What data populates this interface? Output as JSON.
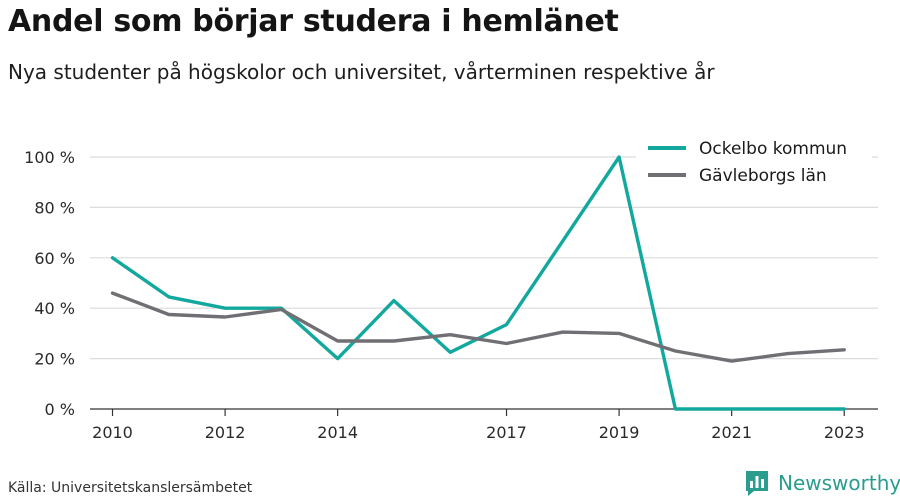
{
  "header": {
    "title": "Andel som börjar studera i hemlänet",
    "subtitle": "Nya studenter på högskolor och universitet, vårterminen respektive år"
  },
  "footer": {
    "source": "Källa: Universitetskanslersämbetet",
    "brand": "Newsworthy"
  },
  "colors": {
    "ockelbo": "#13a89e",
    "gavleborg": "#706f74",
    "grid": "#dcdcdc",
    "axis": "#333333",
    "brand": "#2a9d8f"
  },
  "chart_data": {
    "type": "line",
    "xlim": [
      2009.6,
      2023.6
    ],
    "ylim": [
      0,
      100
    ],
    "x_ticks": [
      2010,
      2012,
      2014,
      2017,
      2019,
      2021,
      2023
    ],
    "x_tick_labels": [
      "2010",
      "2012",
      "2014",
      "2017",
      "2019",
      "2021",
      "2023"
    ],
    "y_ticks": [
      0,
      20,
      40,
      60,
      80,
      100
    ],
    "y_tick_labels": [
      "0 %",
      "20 %",
      "40 %",
      "60 %",
      "80 %",
      "100 %"
    ],
    "grid": true,
    "legend_position": "top-right",
    "series": [
      {
        "name": "Ockelbo kommun",
        "color": "#13a89e",
        "points": [
          [
            2010,
            60
          ],
          [
            2011,
            44.5
          ],
          [
            2012,
            40
          ],
          [
            2013,
            40
          ],
          [
            2014,
            20
          ],
          [
            2015,
            43
          ],
          [
            2016,
            22.5
          ],
          [
            2017,
            33.5
          ],
          [
            2018,
            66.7
          ],
          [
            2019,
            100
          ],
          [
            2020,
            0
          ],
          [
            2021,
            0
          ],
          [
            2022,
            0
          ],
          [
            2023,
            0
          ]
        ]
      },
      {
        "name": "Gävleborgs län",
        "color": "#706f74",
        "points": [
          [
            2010,
            46
          ],
          [
            2011,
            37.5
          ],
          [
            2012,
            36.5
          ],
          [
            2013,
            39.5
          ],
          [
            2014,
            27
          ],
          [
            2015,
            27
          ],
          [
            2016,
            29.5
          ],
          [
            2017,
            26
          ],
          [
            2018,
            30.5
          ],
          [
            2019,
            30
          ],
          [
            2020,
            23
          ],
          [
            2021,
            19
          ],
          [
            2022,
            22
          ],
          [
            2023,
            23.5
          ]
        ]
      }
    ]
  }
}
